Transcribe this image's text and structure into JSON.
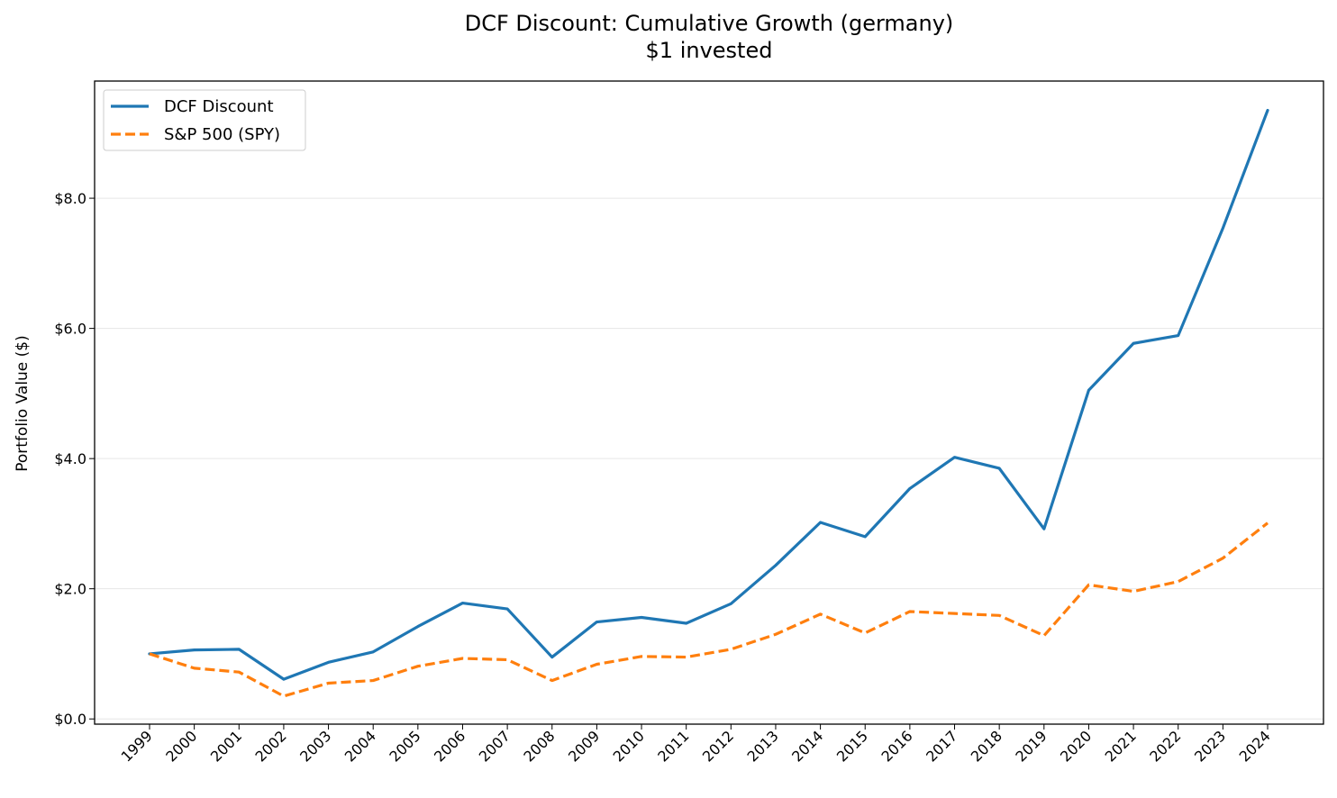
{
  "chart_data": {
    "type": "line",
    "title": "DCF Discount: Cumulative Growth (germany)",
    "subtitle": "$1 invested",
    "xlabel": "",
    "ylabel": "Portfolio Value ($)",
    "x": [
      "1999",
      "2000",
      "2001",
      "2002",
      "2003",
      "2004",
      "2005",
      "2006",
      "2007",
      "2008",
      "2009",
      "2010",
      "2011",
      "2012",
      "2013",
      "2014",
      "2015",
      "2016",
      "2017",
      "2018",
      "2019",
      "2020",
      "2021",
      "2022",
      "2023",
      "2024"
    ],
    "yticks": [
      0,
      2,
      4,
      6,
      8
    ],
    "ytick_labels": [
      "$0.0",
      "$2.0",
      "$4.0",
      "$6.0",
      "$8.0"
    ],
    "ylim": [
      -0.08,
      9.8
    ],
    "grid": "horizontal",
    "legend_position": "top-left",
    "series": [
      {
        "name": "DCF Discount",
        "color": "#1f77b4",
        "style": "solid",
        "values": [
          1.0,
          1.06,
          1.07,
          0.61,
          0.87,
          1.03,
          1.42,
          1.78,
          1.69,
          0.95,
          1.49,
          1.56,
          1.47,
          1.77,
          2.36,
          3.02,
          2.8,
          3.54,
          4.02,
          3.85,
          2.92,
          5.05,
          5.77,
          5.89,
          7.54,
          9.35
        ]
      },
      {
        "name": "S&P 500 (SPY)",
        "color": "#ff7f0e",
        "style": "dashed",
        "values": [
          1.0,
          0.78,
          0.72,
          0.35,
          0.55,
          0.59,
          0.81,
          0.93,
          0.91,
          0.59,
          0.84,
          0.96,
          0.95,
          1.07,
          1.3,
          1.61,
          1.32,
          1.65,
          1.62,
          1.59,
          1.28,
          2.06,
          1.96,
          2.11,
          2.47,
          3.01
        ]
      }
    ]
  }
}
